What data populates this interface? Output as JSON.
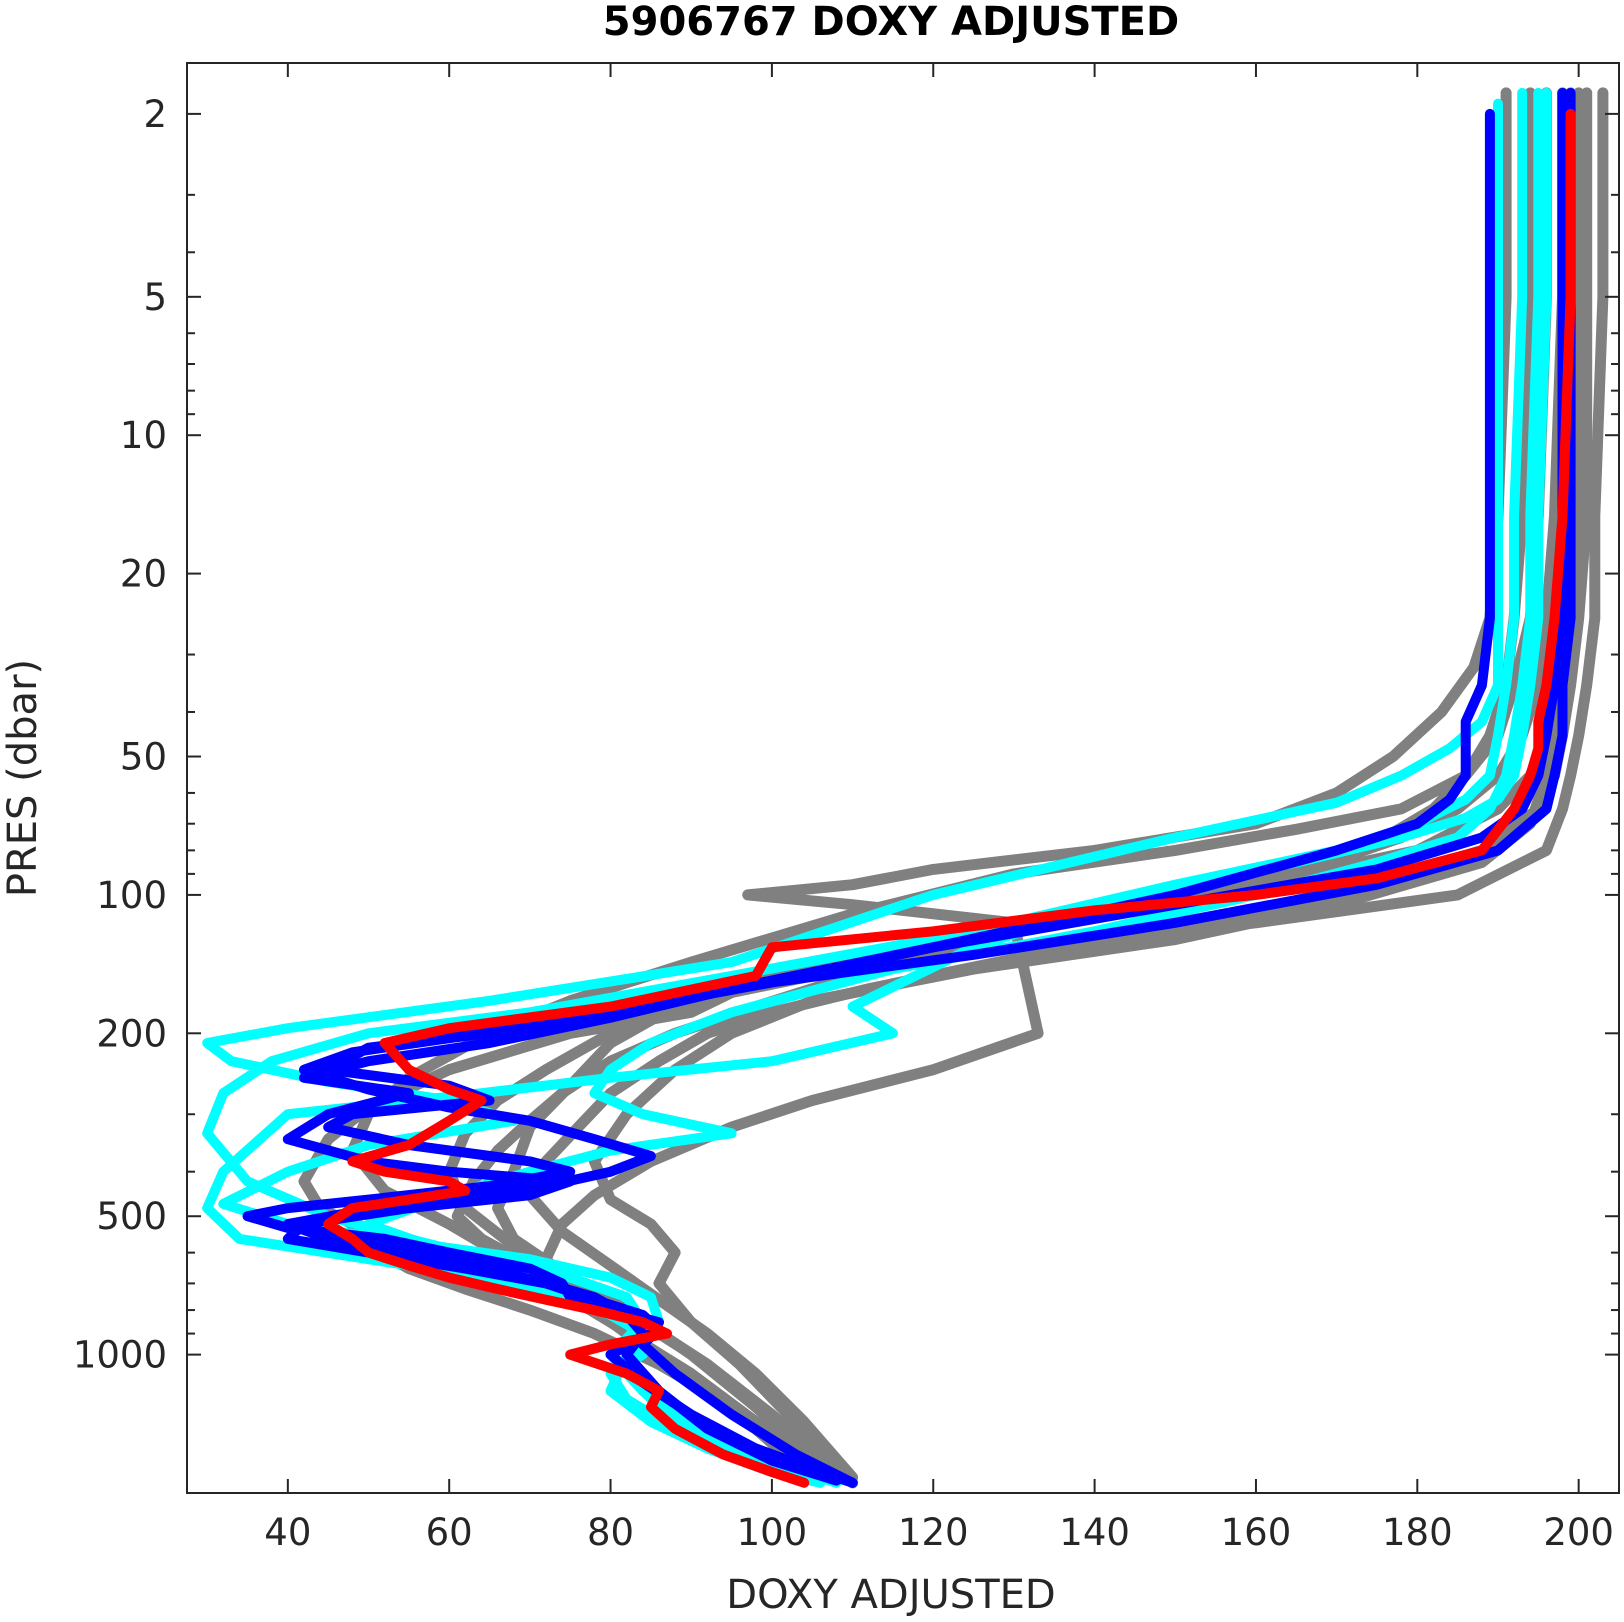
{
  "chart_data": {
    "type": "line",
    "title": "5906767  DOXY ADJUSTED",
    "xlabel": "DOXY ADJUSTED",
    "ylabel": "PRES (dbar)",
    "xlim": [
      27.5,
      205
    ],
    "ylim": [
      1.55,
      2000
    ],
    "yscale": "log",
    "y_reversed": true,
    "grid": false,
    "xticks": [
      40,
      60,
      80,
      100,
      120,
      140,
      160,
      180,
      200
    ],
    "yticks": [
      2,
      5,
      10,
      20,
      50,
      100,
      200,
      500,
      1000
    ],
    "yticks_minor": [
      3,
      4,
      6,
      7,
      8,
      9,
      30,
      40,
      60,
      70,
      80,
      90,
      300,
      400,
      600,
      700,
      800,
      900
    ],
    "colors": {
      "gray": "#808080",
      "cyan": "#00ffff",
      "blue": "#0000ff",
      "red": "#ff0000",
      "axis": "#262626"
    },
    "series": [
      {
        "color": "gray",
        "x": [
          194,
          194,
          193,
          192,
          191,
          189,
          186,
          182,
          176,
          163,
          141,
          120,
          96,
          90,
          75,
          60,
          50,
          45,
          42,
          44,
          48,
          50,
          55,
          62,
          70,
          78,
          86,
          95,
          103,
          110
        ],
        "y": [
          1.8,
          5,
          15,
          25,
          35,
          45,
          55,
          65,
          75,
          90,
          110,
          130,
          160,
          180,
          200,
          240,
          290,
          340,
          420,
          480,
          520,
          580,
          650,
          720,
          800,
          900,
          1050,
          1300,
          1600,
          1900
        ]
      },
      {
        "color": "gray",
        "x": [
          198,
          198,
          197,
          196,
          195,
          193,
          190,
          185,
          178,
          165,
          145,
          126,
          110,
          98,
          88,
          80,
          74,
          70,
          66,
          63,
          61,
          64,
          70,
          78,
          86,
          92,
          98,
          104,
          110
        ],
        "y": [
          1.8,
          5,
          15,
          25,
          35,
          45,
          55,
          65,
          75,
          90,
          105,
          125,
          150,
          175,
          200,
          230,
          270,
          310,
          360,
          420,
          500,
          560,
          640,
          750,
          900,
          1050,
          1300,
          1600,
          1900
        ]
      },
      {
        "color": "gray",
        "x": [
          201,
          201,
          201,
          200,
          199,
          198,
          197,
          195,
          188,
          170,
          148,
          128,
          112,
          100,
          92,
          86,
          80,
          76,
          72,
          70,
          74,
          80,
          86,
          92,
          98,
          104,
          110
        ],
        "y": [
          1.8,
          5,
          15,
          25,
          35,
          45,
          55,
          65,
          80,
          100,
          120,
          140,
          160,
          180,
          200,
          230,
          270,
          320,
          380,
          450,
          540,
          640,
          760,
          900,
          1100,
          1400,
          1850
        ]
      },
      {
        "color": "gray",
        "x": [
          191,
          191,
          190,
          189,
          187,
          183,
          177,
          170,
          160,
          140,
          120,
          110,
          97,
          110,
          130,
          133,
          120,
          105,
          95,
          85,
          78,
          74,
          72,
          76,
          82,
          90,
          98,
          106
        ],
        "y": [
          1.8,
          5,
          15,
          25,
          32,
          40,
          50,
          60,
          70,
          80,
          88,
          95,
          100,
          105,
          115,
          200,
          240,
          280,
          320,
          380,
          450,
          520,
          620,
          750,
          900,
          1100,
          1400,
          1800
        ]
      },
      {
        "color": "gray",
        "x": [
          196,
          196,
          195,
          194,
          192,
          190,
          186,
          178,
          165,
          150,
          130,
          110,
          90,
          75,
          65,
          55,
          50,
          48,
          52,
          60,
          66,
          72,
          80,
          88,
          96,
          104
        ],
        "y": [
          1.8,
          5,
          15,
          25,
          35,
          45,
          55,
          65,
          72,
          80,
          90,
          110,
          140,
          170,
          200,
          250,
          300,
          360,
          440,
          520,
          600,
          700,
          850,
          1050,
          1350,
          1800
        ]
      },
      {
        "color": "gray",
        "x": [
          203,
          203,
          202,
          202,
          201,
          200,
          199,
          198,
          196,
          185,
          160,
          130,
          105,
          90,
          80,
          72,
          66,
          62,
          60,
          62,
          68,
          76,
          84,
          92,
          100,
          108
        ],
        "y": [
          1.8,
          5,
          15,
          25,
          35,
          45,
          55,
          65,
          80,
          100,
          115,
          130,
          150,
          170,
          200,
          240,
          280,
          330,
          400,
          480,
          580,
          700,
          850,
          1050,
          1350,
          1800
        ]
      },
      {
        "color": "gray",
        "x": [
          199,
          199,
          199,
          198,
          197,
          196,
          194,
          190,
          180,
          160,
          135,
          115,
          100,
          88,
          80,
          75,
          70,
          68,
          66,
          68,
          74,
          82,
          90,
          98,
          106
        ],
        "y": [
          1.8,
          5,
          15,
          25,
          35,
          45,
          55,
          65,
          80,
          95,
          110,
          130,
          150,
          175,
          210,
          260,
          320,
          400,
          480,
          560,
          660,
          800,
          1000,
          1300,
          1750
        ]
      },
      {
        "color": "gray",
        "x": [
          200,
          200,
          200,
          199,
          198,
          197,
          196,
          194,
          188,
          170,
          150,
          125,
          105,
          95,
          88,
          82,
          78,
          80,
          85,
          88,
          86,
          90,
          96,
          102,
          108
        ],
        "y": [
          1.8,
          5,
          15,
          25,
          35,
          45,
          55,
          70,
          85,
          105,
          125,
          145,
          170,
          200,
          240,
          300,
          380,
          460,
          520,
          600,
          700,
          850,
          1050,
          1350,
          1800
        ]
      },
      {
        "color": "cyan",
        "x": [
          190,
          190,
          190,
          190,
          190,
          188,
          184,
          178,
          170,
          150,
          120,
          95,
          65,
          40,
          30,
          33,
          45,
          60,
          68,
          50,
          40,
          32,
          40,
          55,
          70,
          80,
          85,
          86,
          82,
          80,
          85,
          92,
          100,
          106
        ],
        "y": [
          1.9,
          5,
          15,
          25,
          35,
          42,
          48,
          55,
          63,
          75,
          100,
          140,
          170,
          195,
          210,
          230,
          255,
          280,
          310,
          350,
          400,
          470,
          520,
          570,
          620,
          680,
          750,
          850,
          1000,
          1200,
          1400,
          1600,
          1800,
          1900
        ]
      },
      {
        "color": "cyan",
        "x": [
          193,
          193,
          192,
          192,
          191,
          190,
          189,
          186,
          180,
          170,
          150,
          125,
          95,
          70,
          50,
          38,
          32,
          30,
          35,
          45,
          55,
          65,
          75,
          82,
          84,
          80,
          84,
          90,
          98,
          106
        ],
        "y": [
          1.8,
          5,
          15,
          25,
          35,
          45,
          55,
          62,
          70,
          80,
          95,
          120,
          150,
          180,
          200,
          230,
          270,
          330,
          420,
          500,
          560,
          620,
          680,
          750,
          850,
          1000,
          1200,
          1450,
          1700,
          1900
        ]
      },
      {
        "color": "cyan",
        "x": [
          196,
          196,
          195,
          195,
          194,
          193,
          192,
          190,
          186,
          178,
          165,
          145,
          125,
          110,
          115,
          100,
          80,
          64,
          40,
          32,
          30,
          34,
          50,
          65,
          74,
          80,
          84,
          84,
          80,
          82,
          88,
          96,
          104,
          108
        ],
        "y": [
          1.8,
          5,
          15,
          25,
          35,
          45,
          55,
          62,
          68,
          75,
          85,
          100,
          130,
          175,
          200,
          230,
          250,
          270,
          300,
          400,
          480,
          560,
          620,
          680,
          750,
          820,
          900,
          1000,
          1100,
          1250,
          1450,
          1650,
          1800,
          1900
        ]
      },
      {
        "color": "cyan",
        "x": [
          195,
          195,
          194,
          194,
          193,
          192,
          191,
          189,
          185,
          175,
          160,
          140,
          115,
          95,
          85,
          80,
          78,
          84,
          95,
          80,
          70,
          60,
          50,
          60,
          70,
          78,
          82,
          84,
          82,
          86,
          94,
          102,
          108
        ],
        "y": [
          1.8,
          5,
          15,
          25,
          35,
          45,
          55,
          65,
          75,
          85,
          100,
          120,
          145,
          180,
          210,
          240,
          270,
          300,
          330,
          360,
          400,
          450,
          520,
          600,
          680,
          760,
          850,
          950,
          1100,
          1300,
          1550,
          1750,
          1900
        ]
      },
      {
        "color": "blue",
        "x": [
          189,
          189,
          189,
          189,
          188,
          186,
          186,
          186,
          184,
          180,
          170,
          150,
          120,
          100,
          80,
          65,
          50,
          45,
          60,
          65,
          48,
          45,
          55,
          70,
          75,
          65,
          50,
          40,
          35,
          40,
          52,
          60,
          70,
          74,
          75,
          80,
          86,
          85,
          80,
          84,
          90,
          98,
          106,
          110
        ],
        "y": [
          2.0,
          5,
          15,
          25,
          35,
          42,
          48,
          55,
          62,
          70,
          80,
          100,
          130,
          155,
          180,
          200,
          215,
          240,
          260,
          280,
          300,
          320,
          350,
          380,
          400,
          430,
          460,
          480,
          500,
          530,
          560,
          600,
          650,
          700,
          750,
          800,
          850,
          900,
          1000,
          1150,
          1350,
          1600,
          1800,
          1900
        ]
      },
      {
        "color": "blue",
        "x": [
          198,
          198,
          198,
          198,
          197,
          196,
          195,
          193,
          188,
          175,
          150,
          120,
          95,
          80,
          65,
          50,
          42,
          55,
          45,
          40,
          50,
          60,
          75,
          70,
          55,
          42,
          40,
          50,
          62,
          72,
          78,
          82,
          84,
          82,
          86,
          92,
          100,
          108
        ],
        "y": [
          1.8,
          5,
          15,
          25,
          35,
          45,
          55,
          65,
          75,
          88,
          105,
          130,
          160,
          185,
          210,
          230,
          250,
          270,
          300,
          340,
          380,
          400,
          420,
          450,
          480,
          520,
          560,
          600,
          650,
          700,
          750,
          820,
          900,
          1000,
          1200,
          1450,
          1700,
          1880
        ]
      },
      {
        "color": "blue",
        "x": [
          199,
          199,
          199,
          199,
          198,
          198,
          197,
          196,
          190,
          175,
          150,
          125,
          100,
          82,
          70,
          60,
          48,
          42,
          50,
          60,
          70,
          78,
          85,
          80,
          72,
          60,
          48,
          40,
          45,
          55,
          65,
          72,
          78,
          84,
          86,
          84,
          88,
          95,
          103,
          110
        ],
        "y": [
          1.8,
          5,
          15,
          25,
          35,
          45,
          55,
          65,
          80,
          95,
          115,
          135,
          155,
          175,
          190,
          205,
          220,
          240,
          265,
          290,
          310,
          340,
          370,
          400,
          430,
          460,
          490,
          520,
          560,
          600,
          650,
          700,
          760,
          820,
          880,
          950,
          1100,
          1350,
          1650,
          1900
        ]
      },
      {
        "color": "red",
        "x": [
          199,
          199,
          198,
          197,
          196,
          195,
          195,
          194,
          192,
          188,
          175,
          160,
          140,
          120,
          100,
          98,
          80,
          60,
          52,
          55,
          60,
          64,
          60,
          55,
          48,
          52,
          60,
          62,
          55,
          48,
          45,
          48,
          50,
          55,
          60,
          66,
          72,
          78,
          84,
          87,
          80,
          75,
          82,
          86,
          85,
          88,
          94,
          100,
          104
        ],
        "y": [
          2.0,
          5,
          15,
          25,
          35,
          42,
          48,
          55,
          65,
          80,
          92,
          100,
          108,
          120,
          130,
          150,
          175,
          195,
          210,
          240,
          265,
          280,
          310,
          350,
          380,
          400,
          420,
          440,
          460,
          480,
          520,
          560,
          600,
          640,
          680,
          720,
          760,
          800,
          850,
          900,
          950,
          1000,
          1100,
          1200,
          1300,
          1450,
          1650,
          1800,
          1900
        ]
      }
    ]
  }
}
